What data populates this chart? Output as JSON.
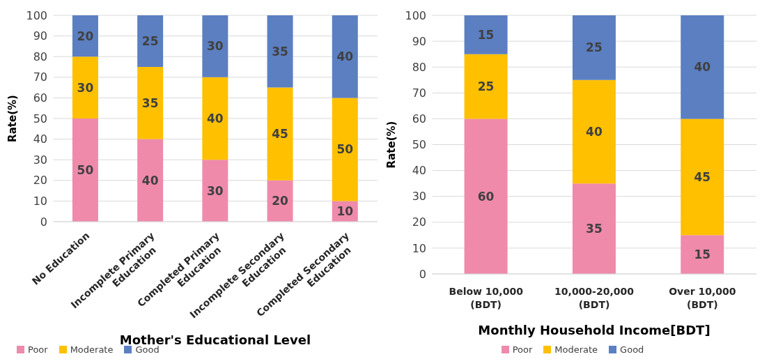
{
  "chart_data": [
    {
      "type": "bar",
      "stacked": true,
      "categories": [
        "No Education",
        "Incomplete Primary Education",
        "Completed Primary Education",
        "Incomplete Secondary Education",
        "Completed Secondary Education"
      ],
      "series": [
        {
          "name": "Poor",
          "color": "#ef8aab",
          "values": [
            50,
            40,
            30,
            20,
            10
          ]
        },
        {
          "name": "Moderate",
          "color": "#ffc000",
          "values": [
            30,
            35,
            40,
            45,
            50
          ]
        },
        {
          "name": "Good",
          "color": "#5b7fc1",
          "values": [
            20,
            25,
            30,
            35,
            40
          ]
        }
      ],
      "ylabel": "Rate(%)",
      "xlabel": "Mother's Educational Level",
      "ylim": [
        0,
        100
      ],
      "yticks": [
        0,
        10,
        20,
        30,
        40,
        50,
        60,
        70,
        80,
        90,
        100
      ],
      "grid": "y",
      "legend": "bottom left",
      "data_labels": true
    },
    {
      "type": "bar",
      "stacked": true,
      "categories": [
        "Below 10,000 (BDT)",
        "10,000-20,000 (BDT)",
        "Over 10,000 (BDT)"
      ],
      "series": [
        {
          "name": "Poor",
          "color": "#ef8aab",
          "values": [
            60,
            35,
            15
          ]
        },
        {
          "name": "Moderate",
          "color": "#ffc000",
          "values": [
            25,
            40,
            45
          ]
        },
        {
          "name": "Good",
          "color": "#5b7fc1",
          "values": [
            15,
            25,
            40
          ]
        }
      ],
      "ylabel": "Rate(%)",
      "xlabel": "Monthly Household Income[BDT]",
      "ylim": [
        0,
        100
      ],
      "yticks": [
        0,
        10,
        20,
        30,
        40,
        50,
        60,
        70,
        80,
        90,
        100
      ],
      "grid": "y",
      "legend": "bottom",
      "data_labels": true
    }
  ]
}
